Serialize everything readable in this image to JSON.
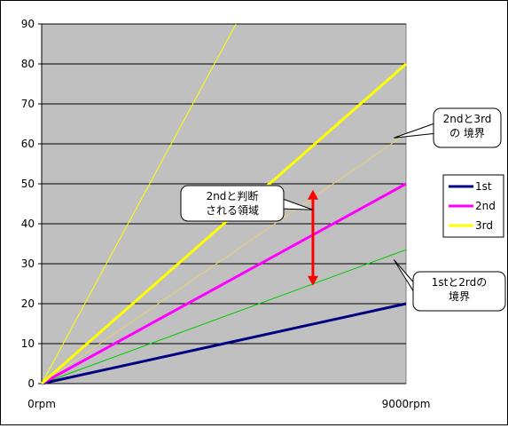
{
  "chart_data": {
    "type": "line",
    "x_range": [
      0,
      9000
    ],
    "x_tick_labels": [
      "0rpm",
      "9000rpm"
    ],
    "ylim": [
      0,
      90
    ],
    "y_ticks": [
      0,
      10,
      20,
      30,
      40,
      50,
      60,
      70,
      80,
      90
    ],
    "grid": true,
    "plot_background": "#c0c0c0",
    "legend": {
      "placement": "right"
    },
    "series": [
      {
        "name": "1st",
        "color": "#000080",
        "x": [
          0,
          9000
        ],
        "y": [
          0,
          20
        ],
        "in_legend": true,
        "style": "thick"
      },
      {
        "name": "2nd",
        "color": "#ff00ff",
        "x": [
          0,
          9000
        ],
        "y": [
          0,
          50
        ],
        "in_legend": true,
        "style": "thick"
      },
      {
        "name": "3rd",
        "color": "#ffff00",
        "x": [
          0,
          9000
        ],
        "y": [
          0,
          80
        ],
        "in_legend": true,
        "style": "thick"
      },
      {
        "name": "",
        "color": "#00cc00",
        "x": [
          0,
          9000
        ],
        "y": [
          0,
          33.5
        ],
        "in_legend": false,
        "style": "thin"
      },
      {
        "name": "",
        "color": "#e8d070",
        "x": [
          0,
          9000
        ],
        "y": [
          0,
          62.5
        ],
        "in_legend": false,
        "style": "thin"
      },
      {
        "name": "",
        "color": "#ffff00",
        "x": [
          0,
          4800
        ],
        "y": [
          0,
          90
        ],
        "in_legend": false,
        "style": "thin"
      }
    ],
    "arrow": {
      "x": 6700,
      "y_from": 24.5,
      "y_to": 48.5,
      "color": "#ff0000"
    },
    "callouts": [
      {
        "lines": [
          "2ndと判断",
          "される領域"
        ],
        "tip": [
          6700,
          43.5
        ],
        "anchor": "left"
      },
      {
        "lines": [
          "2ndと3rd",
          "の 境界"
        ],
        "tip": [
          8700,
          61.5
        ],
        "anchor": "right"
      },
      {
        "lines": [
          "1stと2rdの",
          "境界"
        ],
        "tip": [
          8700,
          31
        ],
        "anchor": "right"
      }
    ]
  }
}
